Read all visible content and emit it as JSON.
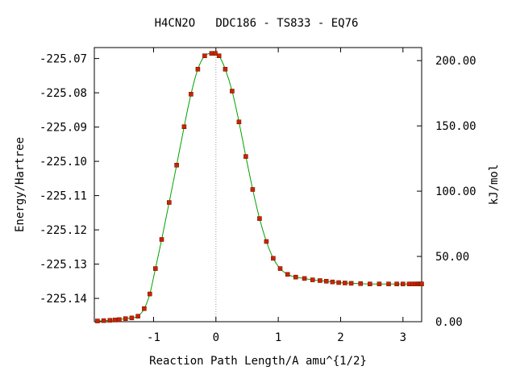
{
  "chart_data": {
    "type": "scatter",
    "title": "H4CN2O   DDC186 - TS833 - EQ76",
    "xlabel": "Reaction Path Length/A amu^{1/2}",
    "ylabel": "Energy/Hartree",
    "y2label": "kJ/mol",
    "xlim": [
      -1.95,
      3.3
    ],
    "ylim": [
      -225.1468,
      -225.0668
    ],
    "y2lim": [
      0,
      210
    ],
    "x_ticks": [
      -1,
      0,
      1,
      2,
      3
    ],
    "x_tick_labels": [
      "-1",
      "0",
      "1",
      "2",
      "3"
    ],
    "y_ticks": [
      -225.07,
      -225.08,
      -225.09,
      -225.1,
      -225.11,
      -225.12,
      -225.13,
      -225.14
    ],
    "y_tick_labels": [
      "-225.07",
      "-225.08",
      "-225.09",
      "-225.10",
      "-225.11",
      "-225.12",
      "-225.13",
      "-225.14"
    ],
    "y2_ticks": [
      0,
      50,
      100,
      150,
      200
    ],
    "y2_tick_labels": [
      "0.00",
      "50.00",
      "100.00",
      "150.00",
      "200.00"
    ],
    "ts_line_x": 0,
    "grid": false,
    "curve_color": "#00a000",
    "marker_color": "#cc2200",
    "marker_edge_color": "#7a1a00",
    "ts_line_color": "#999999",
    "series": [
      {
        "x": [
          -1.9,
          -1.8,
          -1.7,
          -1.62,
          -1.55,
          -1.45,
          -1.35,
          -1.25,
          -1.15,
          -1.06,
          -0.97,
          -0.87,
          -0.75,
          -0.63,
          -0.51,
          -0.4,
          -0.29,
          -0.18,
          -0.07,
          -0.01,
          0.05,
          0.15,
          0.26,
          0.37,
          0.48,
          0.59,
          0.7,
          0.81,
          0.92,
          1.03,
          1.15,
          1.28,
          1.42,
          1.55,
          1.67,
          1.77,
          1.87,
          1.97,
          2.07,
          2.17,
          2.32,
          2.47,
          2.62,
          2.77,
          2.9,
          3.0,
          3.1,
          3.16,
          3.2,
          3.23,
          3.25,
          3.27,
          3.29,
          3.3
        ],
        "y": [
          -225.1466,
          -225.1465,
          -225.1464,
          -225.1463,
          -225.1462,
          -225.1459,
          -225.1457,
          -225.1452,
          -225.143,
          -225.1387,
          -225.1313,
          -225.1228,
          -225.112,
          -225.1011,
          -225.0899,
          -225.0804,
          -225.0731,
          -225.0692,
          -225.0685,
          -225.0685,
          -225.0692,
          -225.0731,
          -225.0795,
          -225.0885,
          -225.0986,
          -225.1082,
          -225.1167,
          -225.1234,
          -225.1283,
          -225.1313,
          -225.133,
          -225.1338,
          -225.1342,
          -225.1346,
          -225.1348,
          -225.135,
          -225.1352,
          -225.1354,
          -225.1355,
          -225.1356,
          -225.1357,
          -225.1358,
          -225.1358,
          -225.1358,
          -225.1358,
          -225.1358,
          -225.1358,
          -225.1358,
          -225.1358,
          -225.1358,
          -225.1358,
          -225.1358,
          -225.1358,
          -225.1358
        ]
      }
    ]
  }
}
